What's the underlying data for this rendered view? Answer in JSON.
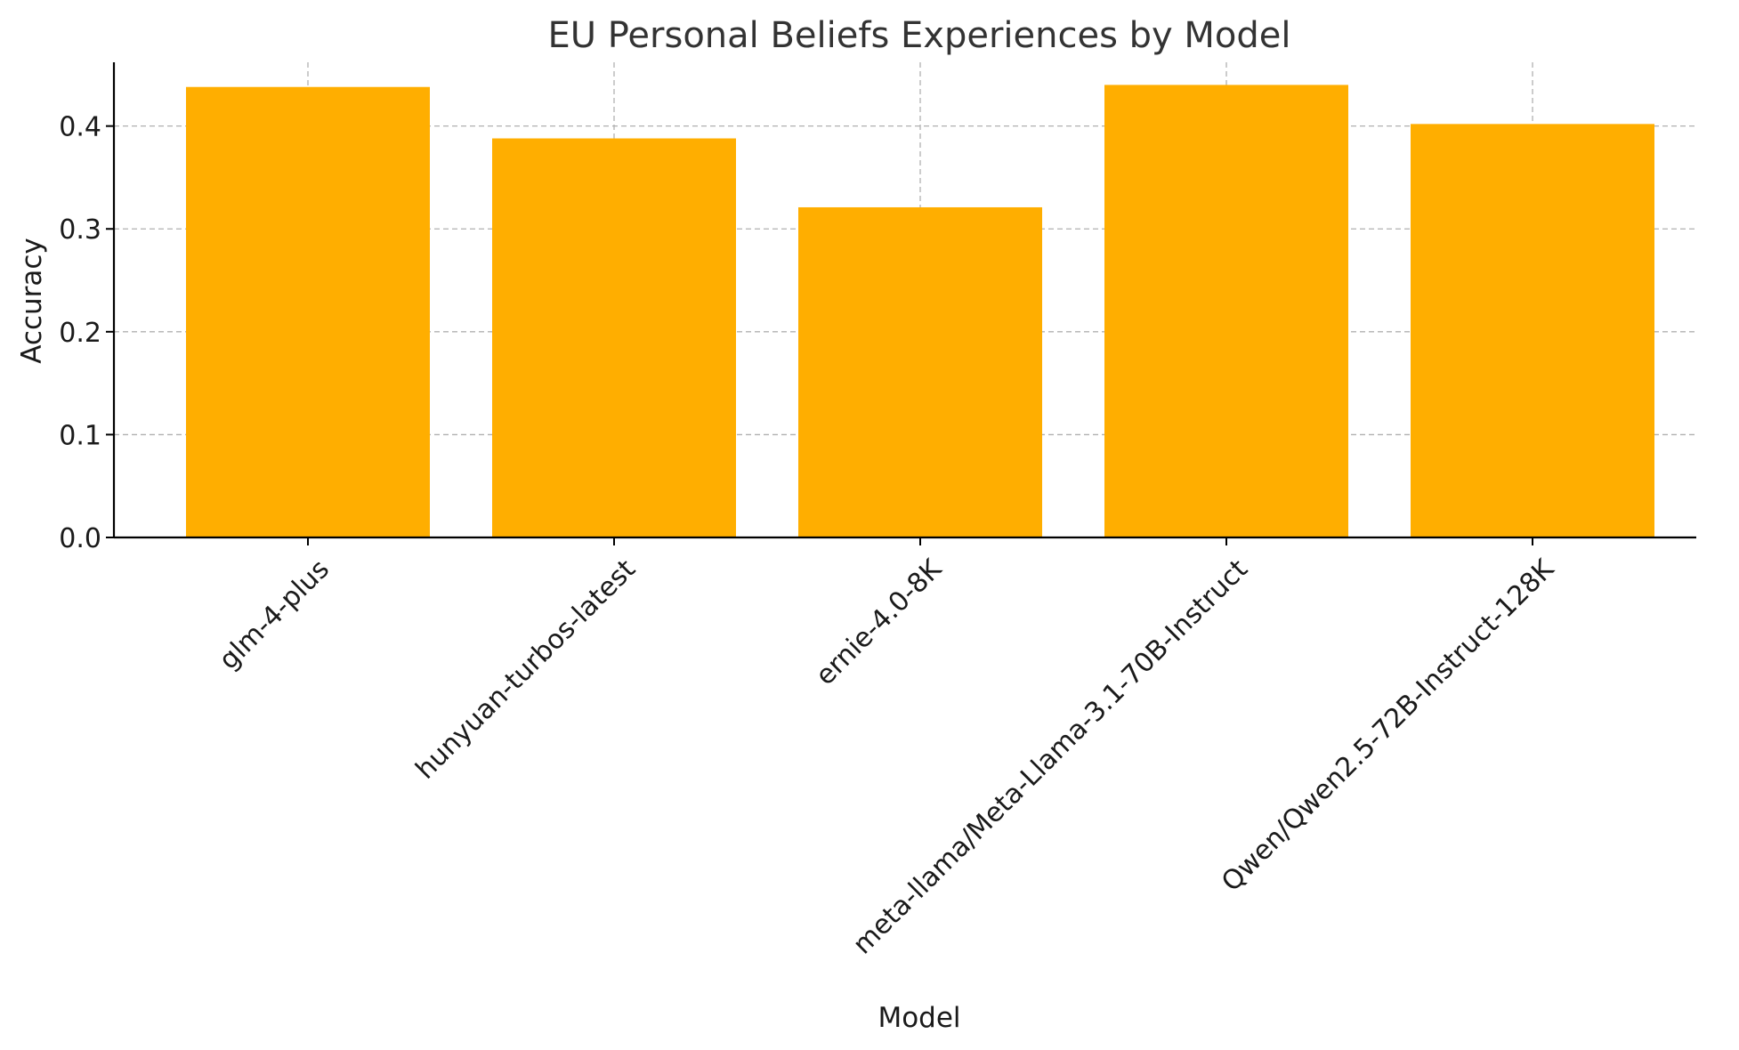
{
  "chart_data": {
    "type": "bar",
    "title": "EU Personal Beliefs Experiences by Model",
    "xlabel": "Model",
    "ylabel": "Accuracy",
    "categories": [
      "glm-4-plus",
      "hunyuan-turbos-latest",
      "ernie-4.0-8K",
      "meta-llama/Meta-Llama-3.1-70B-Instruct",
      "Qwen/Qwen2.5-72B-Instruct-128K"
    ],
    "values": [
      0.438,
      0.388,
      0.321,
      0.44,
      0.402
    ],
    "ylim": [
      0,
      0.462
    ],
    "yticks": [
      0.0,
      0.1,
      0.2,
      0.3,
      0.4
    ],
    "ytick_labels": [
      "0.0",
      "0.1",
      "0.2",
      "0.3",
      "0.4"
    ],
    "bar_color": "#FFAE00",
    "grid": true,
    "legend": "none"
  }
}
